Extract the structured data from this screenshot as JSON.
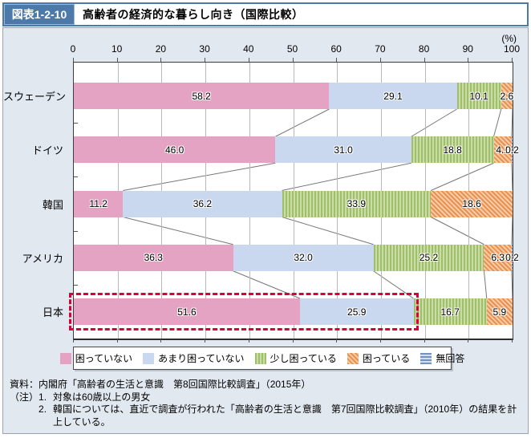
{
  "figure": {
    "badge": "図表1-2-10",
    "title": "高齢者の経済的な暮らし向き（国際比較）"
  },
  "chart_data": {
    "type": "bar",
    "stacked": true,
    "orientation": "horizontal",
    "unit": "(%)",
    "xlim": [
      0,
      100
    ],
    "x_ticks": [
      0,
      10,
      20,
      30,
      40,
      50,
      60,
      70,
      80,
      90,
      100
    ],
    "categories": [
      "スウェーデン",
      "ドイツ",
      "韓国",
      "アメリカ",
      "日本"
    ],
    "series": [
      {
        "name": "困っていない",
        "pattern": "solid-pink",
        "values": [
          58.2,
          46.0,
          11.2,
          36.3,
          51.6
        ]
      },
      {
        "name": "あまり困っていない",
        "pattern": "solid-blue",
        "values": [
          29.1,
          31.0,
          36.2,
          32.0,
          25.9
        ]
      },
      {
        "name": "少し困っている",
        "pattern": "stripe-green",
        "values": [
          10.1,
          18.8,
          33.9,
          25.2,
          16.7
        ]
      },
      {
        "name": "困っている",
        "pattern": "stripe-orange",
        "values": [
          2.6,
          4.1,
          18.6,
          6.3,
          5.9
        ]
      },
      {
        "name": "無回答",
        "pattern": "stripe-navy",
        "values": [
          null,
          0.2,
          null,
          0.2,
          null
        ]
      }
    ],
    "highlight": {
      "category": "日本",
      "segments_spanned": 2
    }
  },
  "colors": {
    "pink": "#e5a3c3",
    "light_blue": "#c9d8ee",
    "green_dark": "#9fbf6a",
    "green_light": "#cadda6",
    "orange_dark": "#e89150",
    "orange_light": "#f6cba6",
    "navy_dark": "#7593bf",
    "navy_light": "#d3dded",
    "highlight_red": "#d7003a",
    "header_blue": "#4d79a9",
    "panel_bg": "#e2e8f0"
  },
  "notes": {
    "source_label": "資料：",
    "source": "内閣府「高齢者の生活と意識　第8回国際比較調査」（2015年）",
    "note_label": "（注）",
    "items": [
      {
        "num": "1.",
        "text": "対象は60歳以上の男女"
      },
      {
        "num": "2.",
        "text": "韓国については、直近で調査が行われた「高齢者の生活と意識　第7回国際比較調査」（2010年）の結果を計上している。"
      }
    ]
  }
}
